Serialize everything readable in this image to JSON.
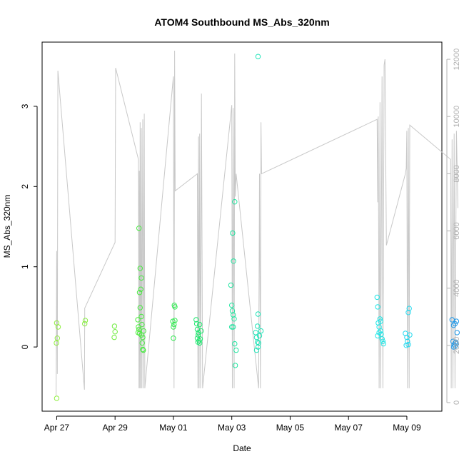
{
  "chart_data": {
    "type": "scatter",
    "title": "ATOM4 Southbound MS_Abs_320nm",
    "xlabel": "Date",
    "ylabel": "MS_Abs_320nm",
    "x_tick_labels": [
      "Apr 27",
      "Apr 29",
      "May 01",
      "May 03",
      "May 05",
      "May 07",
      "May 09"
    ],
    "x_ticks_day": [
      0,
      2,
      4,
      6,
      8,
      10,
      12
    ],
    "xlim_day": [
      -0.5,
      13.2
    ],
    "ylim": [
      -0.8,
      3.8
    ],
    "y_ticks": [
      0,
      1,
      2,
      3
    ],
    "y2lim": [
      -300,
      12600
    ],
    "y2_ticks": [
      0,
      2000,
      4000,
      6000,
      8000,
      10000,
      12000
    ],
    "grid": false,
    "colors": {
      "line": "#c8c8c8",
      "axis": "#000000",
      "right_axis": "#b0b0b0"
    },
    "points": [
      [
        0.0,
        0.3,
        "#90ee40"
      ],
      [
        0.02,
        0.11,
        "#90ee40"
      ],
      [
        0.05,
        0.25,
        "#90ee40"
      ],
      [
        -0.01,
        0.05,
        "#90ee40"
      ],
      [
        0.0,
        -0.64,
        "#90ee40"
      ],
      [
        0.98,
        0.33,
        "#88ee40"
      ],
      [
        0.96,
        0.29,
        "#88ee40"
      ],
      [
        1.98,
        0.26,
        "#70ec40"
      ],
      [
        2.0,
        0.19,
        "#70ec40"
      ],
      [
        1.97,
        0.12,
        "#70ec40"
      ],
      [
        2.78,
        0.34,
        "#50ec40"
      ],
      [
        2.8,
        0.25,
        "#50ec40"
      ],
      [
        2.79,
        0.18,
        "#50ec40"
      ],
      [
        2.82,
        0.22,
        "#50ec40"
      ],
      [
        2.84,
        0.17,
        "#50ec40"
      ],
      [
        2.82,
        1.48,
        "#48ea40"
      ],
      [
        2.86,
        0.98,
        "#48ea40"
      ],
      [
        2.84,
        0.68,
        "#48ea40"
      ],
      [
        2.88,
        0.72,
        "#48ea40"
      ],
      [
        2.9,
        0.86,
        "#48ea40"
      ],
      [
        2.86,
        0.49,
        "#48ea40"
      ],
      [
        2.9,
        0.38,
        "#48ea40"
      ],
      [
        2.92,
        0.28,
        "#48ea40"
      ],
      [
        2.9,
        0.15,
        "#48ea40"
      ],
      [
        2.93,
        0.05,
        "#48ea40"
      ],
      [
        2.95,
        -0.03,
        "#48ea40"
      ],
      [
        2.97,
        -0.04,
        "#48ea40"
      ],
      [
        2.98,
        0.2,
        "#48ea40"
      ],
      [
        2.95,
        0.12,
        "#48ea40"
      ],
      [
        3.98,
        0.32,
        "#30ea50"
      ],
      [
        4.02,
        0.28,
        "#30ea50"
      ],
      [
        4.05,
        0.33,
        "#30ea50"
      ],
      [
        4.0,
        0.11,
        "#30ea50"
      ],
      [
        4.03,
        0.52,
        "#30ea50"
      ],
      [
        4.05,
        0.5,
        "#30ea50"
      ],
      [
        4.0,
        0.25,
        "#30ea50"
      ],
      [
        4.78,
        0.34,
        "#20e870"
      ],
      [
        4.8,
        0.29,
        "#20e870"
      ],
      [
        4.82,
        0.22,
        "#20e870"
      ],
      [
        4.85,
        0.15,
        "#20e870"
      ],
      [
        4.82,
        0.11,
        "#20e870"
      ],
      [
        4.88,
        0.08,
        "#20e870"
      ],
      [
        4.9,
        0.05,
        "#20e870"
      ],
      [
        4.92,
        0.1,
        "#20e870"
      ],
      [
        4.86,
        0.18,
        "#20e870"
      ],
      [
        4.95,
        0.2,
        "#20e870"
      ],
      [
        4.9,
        0.28,
        "#20e870"
      ],
      [
        4.84,
        0.06,
        "#20e870"
      ],
      [
        5.97,
        0.77,
        "#20e6a0"
      ],
      [
        6.0,
        0.52,
        "#20e6a0"
      ],
      [
        6.02,
        0.45,
        "#20e6a0"
      ],
      [
        6.05,
        0.4,
        "#20e6a0"
      ],
      [
        6.03,
        1.42,
        "#20e6a0"
      ],
      [
        6.06,
        1.07,
        "#20e6a0"
      ],
      [
        6.1,
        1.81,
        "#20e6a0"
      ],
      [
        6.08,
        0.35,
        "#20e6a0"
      ],
      [
        6.0,
        0.25,
        "#20e6a0"
      ],
      [
        6.05,
        0.25,
        "#20e6a0"
      ],
      [
        6.1,
        0.04,
        "#20e6a0"
      ],
      [
        6.15,
        -0.04,
        "#20e6a0"
      ],
      [
        6.12,
        -0.23,
        "#20e6a0"
      ],
      [
        6.9,
        0.41,
        "#20e4b8"
      ],
      [
        6.82,
        0.18,
        "#20e4b8"
      ],
      [
        6.85,
        0.12,
        "#20e4b8"
      ],
      [
        6.88,
        0.06,
        "#20e4b8"
      ],
      [
        6.9,
        0.0,
        "#20e4b8"
      ],
      [
        6.92,
        0.05,
        "#20e4b8"
      ],
      [
        6.85,
        -0.04,
        "#20e4b8"
      ],
      [
        6.88,
        0.26,
        "#20e4b8"
      ],
      [
        6.95,
        0.14,
        "#20e4b8"
      ],
      [
        7.0,
        0.2,
        "#20e4b8"
      ],
      [
        6.9,
        3.62,
        "#20e4b8"
      ],
      [
        10.98,
        0.62,
        "#20e6e6"
      ],
      [
        11.0,
        0.5,
        "#20e6e6"
      ],
      [
        11.02,
        0.3,
        "#20e6e6"
      ],
      [
        11.05,
        0.25,
        "#20e6e6"
      ],
      [
        11.08,
        0.35,
        "#20e6e6"
      ],
      [
        11.1,
        0.2,
        "#20e6e6"
      ],
      [
        11.0,
        0.14,
        "#20e6e6"
      ],
      [
        11.12,
        0.16,
        "#20e6e6"
      ],
      [
        11.15,
        0.1,
        "#20e6e6"
      ],
      [
        11.18,
        0.07,
        "#20e6e6"
      ],
      [
        11.2,
        0.04,
        "#20e6e6"
      ],
      [
        11.05,
        0.18,
        "#20e6e6"
      ],
      [
        11.1,
        0.32,
        "#20e6e6"
      ],
      [
        11.95,
        0.17,
        "#20d8ee"
      ],
      [
        12.0,
        0.12,
        "#20d8ee"
      ],
      [
        12.02,
        0.07,
        "#20d8ee"
      ],
      [
        12.05,
        0.03,
        "#20d8ee"
      ],
      [
        12.05,
        0.43,
        "#20d8ee"
      ],
      [
        12.08,
        0.48,
        "#20d8ee"
      ],
      [
        11.98,
        0.02,
        "#20d8ee"
      ],
      [
        12.1,
        0.15,
        "#20d8ee"
      ],
      [
        13.55,
        0.34,
        "#2098e8"
      ],
      [
        13.6,
        0.27,
        "#2098e8"
      ],
      [
        13.65,
        0.29,
        "#2098e8"
      ],
      [
        13.7,
        0.32,
        "#2098e8"
      ],
      [
        13.72,
        0.18,
        "#2098e8"
      ],
      [
        13.58,
        0.07,
        "#2098e8"
      ],
      [
        13.62,
        0.03,
        "#2098e8"
      ],
      [
        13.65,
        0.01,
        "#2098e8"
      ],
      [
        13.68,
        0.06,
        "#2098e8"
      ],
      [
        13.7,
        0.04,
        "#2098e8"
      ],
      [
        13.6,
        0.0,
        "#2098e8"
      ],
      [
        13.66,
        0.05,
        "#2098e8"
      ]
    ],
    "series_y2": [
      [
        -0.02,
        250
      ],
      [
        0.0,
        5300
      ],
      [
        0.02,
        1000
      ],
      [
        0.04,
        11600
      ],
      [
        0.95,
        450
      ],
      [
        0.96,
        3300
      ],
      [
        2.0,
        5600
      ],
      [
        2.02,
        11700
      ],
      [
        2.8,
        8500
      ],
      [
        2.82,
        500
      ],
      [
        2.83,
        8100
      ],
      [
        2.85,
        500
      ],
      [
        2.86,
        9800
      ],
      [
        2.88,
        500
      ],
      [
        2.9,
        9600
      ],
      [
        2.92,
        500
      ],
      [
        2.95,
        9900
      ],
      [
        2.98,
        500
      ],
      [
        3.0,
        10100
      ],
      [
        3.02,
        500
      ],
      [
        4.0,
        11400
      ],
      [
        4.02,
        500
      ],
      [
        4.04,
        12300
      ],
      [
        4.06,
        7400
      ],
      [
        4.82,
        8000
      ],
      [
        4.84,
        500
      ],
      [
        4.86,
        9300
      ],
      [
        4.88,
        500
      ],
      [
        4.9,
        9400
      ],
      [
        4.93,
        500
      ],
      [
        4.96,
        10800
      ],
      [
        5.0,
        500
      ],
      [
        6.0,
        10400
      ],
      [
        6.02,
        500
      ],
      [
        6.05,
        10300
      ],
      [
        6.08,
        500
      ],
      [
        6.1,
        12200
      ],
      [
        6.12,
        7200
      ],
      [
        6.15,
        8000
      ],
      [
        6.92,
        500
      ],
      [
        6.95,
        8000
      ],
      [
        6.98,
        500
      ],
      [
        7.0,
        9800
      ],
      [
        7.02,
        8000
      ],
      [
        10.98,
        9900
      ],
      [
        11.0,
        7000
      ],
      [
        11.02,
        10000
      ],
      [
        11.05,
        500
      ],
      [
        11.08,
        10500
      ],
      [
        11.1,
        500
      ],
      [
        11.15,
        11400
      ],
      [
        11.18,
        500
      ],
      [
        11.22,
        11800
      ],
      [
        11.25,
        12000
      ],
      [
        11.3,
        5500
      ],
      [
        11.95,
        8000
      ],
      [
        11.98,
        8200
      ],
      [
        12.0,
        9500
      ],
      [
        12.02,
        500
      ],
      [
        12.05,
        9600
      ],
      [
        12.08,
        500
      ],
      [
        12.1,
        9700
      ],
      [
        13.5,
        8500
      ],
      [
        13.52,
        500
      ],
      [
        13.55,
        9200
      ],
      [
        13.58,
        500
      ],
      [
        13.62,
        9400
      ],
      [
        13.65,
        500
      ],
      [
        13.7,
        9500
      ],
      [
        13.75,
        6800
      ]
    ]
  }
}
